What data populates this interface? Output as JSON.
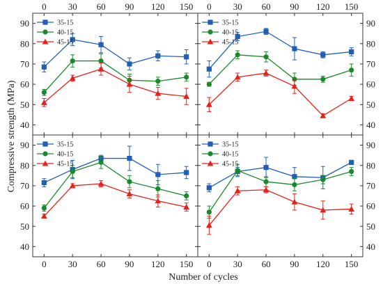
{
  "figure": {
    "ylabel": "Compressive strength (MPa)",
    "xlabel": "Number of cycles"
  },
  "chart_data": [
    {
      "type": "line",
      "panel": "top-left",
      "x": [
        0,
        30,
        60,
        90,
        120,
        150
      ],
      "xlim": [
        -12,
        162
      ],
      "ylim": [
        35,
        95
      ],
      "yticks": [
        40,
        50,
        60,
        70,
        80,
        90
      ],
      "xticks_shown": "top",
      "yticks_shown": "left",
      "legend": "top-left",
      "grid": false,
      "series": [
        {
          "name": "35-15",
          "color": "#1f5fb5",
          "marker": "square",
          "values": [
            68.5,
            82,
            79.5,
            70,
            74,
            73.5
          ],
          "errors": [
            2.5,
            3,
            4,
            3,
            2.5,
            3.5
          ]
        },
        {
          "name": "40-15",
          "color": "#198a2a",
          "marker": "circle",
          "values": [
            56,
            71.5,
            71.5,
            62,
            61.5,
            63.5
          ],
          "errors": [
            1.5,
            3,
            3.5,
            3,
            2,
            2
          ]
        },
        {
          "name": "45-15",
          "color": "#e8201a",
          "marker": "triangle",
          "values": [
            51,
            63,
            67.5,
            60,
            55.5,
            54
          ],
          "errors": [
            2,
            1.5,
            3,
            4,
            3,
            4
          ]
        }
      ]
    },
    {
      "type": "line",
      "panel": "top-right",
      "x": [
        0,
        30,
        60,
        90,
        120,
        150
      ],
      "xlim": [
        -12,
        162
      ],
      "ylim": [
        35,
        95
      ],
      "yticks": [
        40,
        50,
        60,
        70,
        80,
        90
      ],
      "xticks_shown": "top",
      "yticks_shown": "right",
      "legend": "top-left",
      "grid": false,
      "series": [
        {
          "name": "35-15",
          "color": "#1f5fb5",
          "marker": "square",
          "values": [
            67.5,
            83.5,
            86,
            77.5,
            74.5,
            76
          ],
          "errors": [
            4,
            2,
            1.5,
            5.5,
            1.5,
            2
          ]
        },
        {
          "name": "40-15",
          "color": "#198a2a",
          "marker": "circle",
          "values": [
            60,
            74.5,
            73.5,
            62.5,
            62.5,
            67
          ],
          "errors": [
            1,
            2,
            2.5,
            3,
            1.5,
            3
          ]
        },
        {
          "name": "45-15",
          "color": "#e8201a",
          "marker": "triangle",
          "values": [
            50,
            63.5,
            65.5,
            59,
            44.5,
            53
          ],
          "errors": [
            3.5,
            2,
            1.5,
            3.5,
            1,
            1
          ]
        }
      ]
    },
    {
      "type": "line",
      "panel": "bottom-left",
      "x": [
        0,
        30,
        60,
        90,
        120,
        150
      ],
      "xlim": [
        -12,
        162
      ],
      "ylim": [
        35,
        95
      ],
      "yticks": [
        40,
        50,
        60,
        70,
        80,
        90
      ],
      "xticks_shown": "bottom",
      "yticks_shown": "left",
      "legend": "top-left",
      "grid": false,
      "series": [
        {
          "name": "35-15",
          "color": "#1f5fb5",
          "marker": "square",
          "values": [
            71.5,
            78,
            83.5,
            83.5,
            75.5,
            76.5
          ],
          "errors": [
            2,
            4.5,
            1.5,
            6,
            5,
            3
          ]
        },
        {
          "name": "40-15",
          "color": "#198a2a",
          "marker": "circle",
          "values": [
            59,
            77,
            81.5,
            72,
            68.5,
            65
          ],
          "errors": [
            1.5,
            3,
            3,
            3,
            4,
            2
          ]
        },
        {
          "name": "45-15",
          "color": "#e8201a",
          "marker": "triangle",
          "values": [
            55,
            70,
            71,
            66,
            62.5,
            59.5
          ],
          "errors": [
            1,
            1,
            1.5,
            2,
            3,
            2
          ]
        }
      ]
    },
    {
      "type": "line",
      "panel": "bottom-right",
      "x": [
        0,
        30,
        60,
        90,
        120,
        150
      ],
      "xlim": [
        -12,
        162
      ],
      "ylim": [
        35,
        95
      ],
      "yticks": [
        40,
        50,
        60,
        70,
        80,
        90
      ],
      "xticks_shown": "bottom",
      "yticks_shown": "right",
      "legend": "top-left",
      "grid": false,
      "series": [
        {
          "name": "35-15",
          "color": "#1f5fb5",
          "marker": "square",
          "values": [
            69,
            77,
            79,
            74.5,
            74,
            81.5
          ],
          "errors": [
            2,
            2,
            5,
            4.5,
            5.5,
            1
          ]
        },
        {
          "name": "40-15",
          "color": "#198a2a",
          "marker": "circle",
          "values": [
            57,
            77.5,
            72,
            70.5,
            73,
            77
          ],
          "errors": [
            3,
            3,
            2.5,
            3,
            2,
            2
          ]
        },
        {
          "name": "45-15",
          "color": "#e8201a",
          "marker": "triangle",
          "values": [
            50.5,
            67.5,
            68,
            62,
            58,
            58.5
          ],
          "errors": [
            4.5,
            2,
            1.5,
            4,
            4.5,
            2.5
          ]
        }
      ]
    }
  ]
}
